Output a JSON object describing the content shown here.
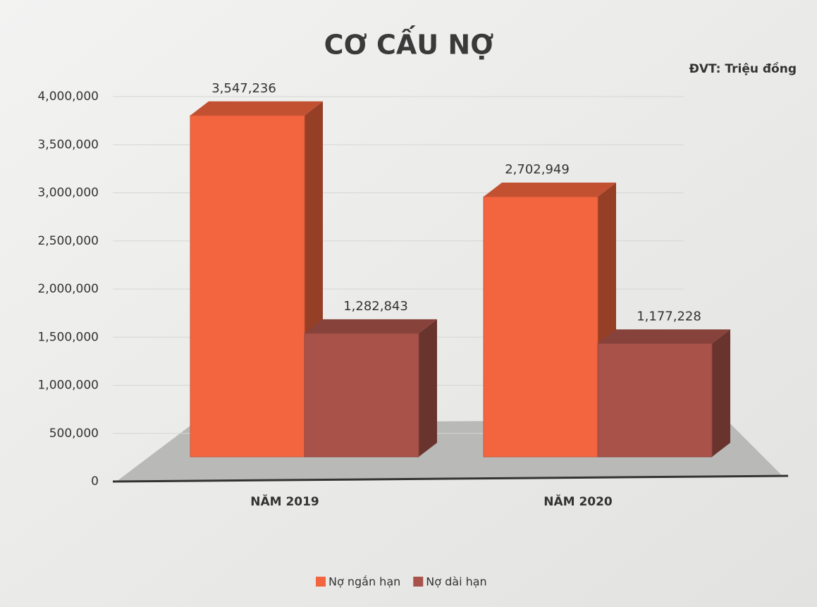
{
  "chart_data": {
    "type": "bar",
    "title": "CƠ CẤU NỢ",
    "subtitle": "ĐVT: Triệu đồng",
    "categories": [
      "NĂM 2019",
      "NĂM 2020"
    ],
    "series": [
      {
        "name": "Nợ ngắn hạn",
        "color": "#f2653f",
        "values": [
          3547236,
          2702949
        ],
        "value_labels": [
          "3,547,236",
          "2,702,949"
        ]
      },
      {
        "name": "Nợ dài hạn",
        "color": "#a9524a",
        "values": [
          1282843,
          1177228
        ],
        "value_labels": [
          "1,282,843",
          "1,177,228"
        ]
      }
    ],
    "ylim": [
      0,
      4000000
    ],
    "yticks": [
      0,
      {
        "value": 500000,
        "label": "500,000"
      },
      {
        "value": 1000000,
        "label": "1,000,000"
      },
      {
        "value": 1500000,
        "label": "1,500,000"
      },
      {
        "value": 2000000,
        "label": "2,000,000"
      },
      {
        "value": 2500000,
        "label": "2,500,000"
      },
      {
        "value": 3000000,
        "label": "3,000,000"
      },
      {
        "value": 3500000,
        "label": "3,500,000"
      },
      {
        "value": 4000000,
        "label": "4,000,000"
      }
    ],
    "grid": true,
    "legend": "bottom"
  }
}
